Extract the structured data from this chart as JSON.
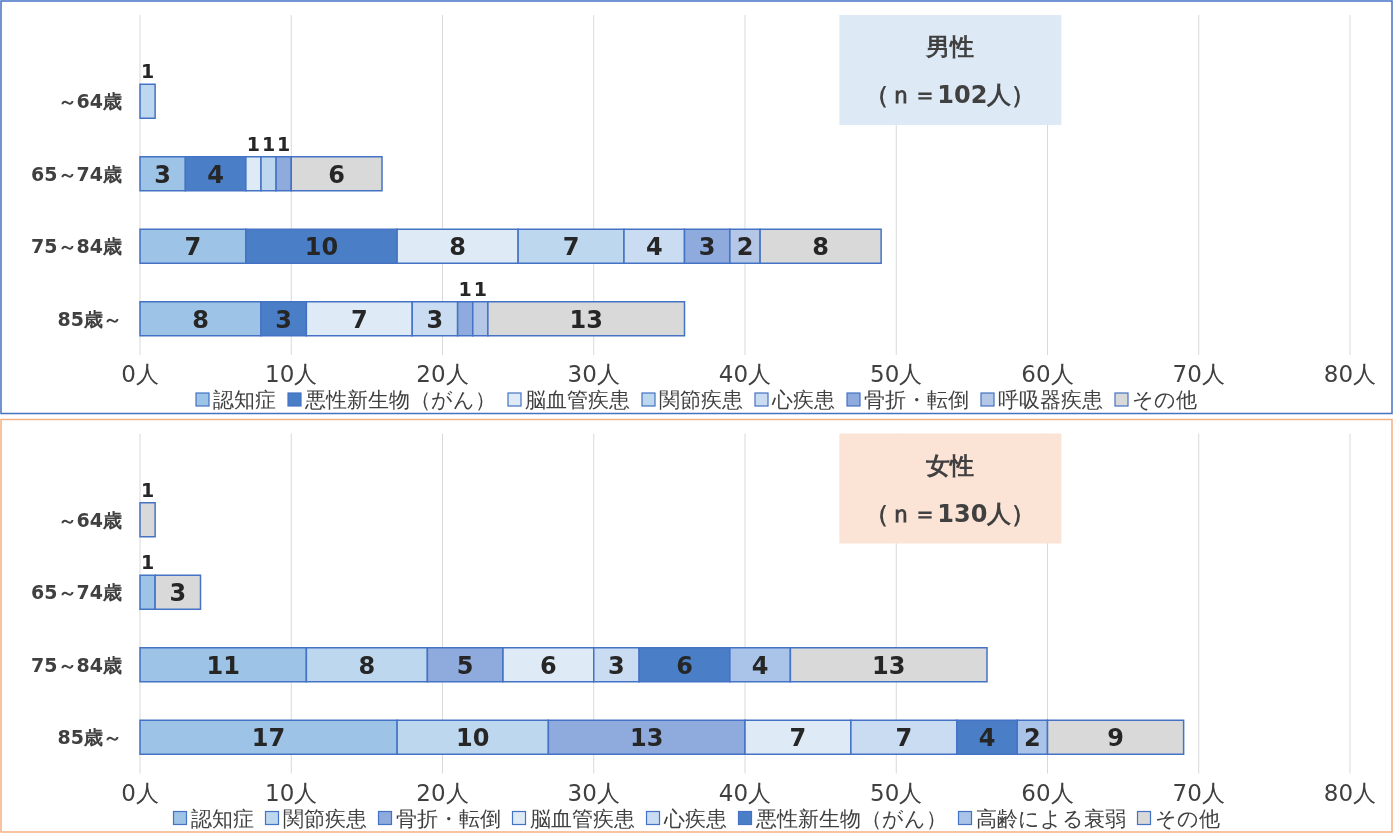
{
  "chart_data": [
    {
      "type": "bar",
      "orientation": "horizontal",
      "stacked": true,
      "title": "男性",
      "subtitle": "（ｎ＝102人）",
      "categories": [
        "～64歳",
        "65～74歳",
        "75～84歳",
        "85歳～"
      ],
      "series": [
        {
          "name": "認知症",
          "color": "#9dc3e6",
          "values": [
            null,
            3,
            7,
            8
          ]
        },
        {
          "name": "悪性新生物（がん）",
          "color": "#4a7fc8",
          "values": [
            null,
            4,
            10,
            3
          ]
        },
        {
          "name": "脳血管疾患",
          "color": "#deebf7",
          "values": [
            null,
            1,
            8,
            7
          ]
        },
        {
          "name": "関節疾患",
          "color": "#bdd7ee",
          "values": [
            1,
            1,
            7,
            null
          ]
        },
        {
          "name": "心疾患",
          "color": "#c9dcf2",
          "values": [
            null,
            null,
            4,
            3
          ]
        },
        {
          "name": "骨折・転倒",
          "color": "#8faadc",
          "values": [
            null,
            1,
            3,
            1
          ]
        },
        {
          "name": "呼吸器疾患",
          "color": "#b4c7e7",
          "values": [
            null,
            null,
            2,
            1
          ]
        },
        {
          "name": "その他",
          "color": "#d9d9d9",
          "values": [
            null,
            6,
            8,
            13
          ]
        }
      ],
      "xlim": [
        0,
        80
      ],
      "xticks": [
        {
          "value": 0,
          "label": "0人"
        },
        {
          "value": 10,
          "label": "10人"
        },
        {
          "value": 20,
          "label": "20人"
        },
        {
          "value": 30,
          "label": "30人"
        },
        {
          "value": 40,
          "label": "40人"
        },
        {
          "value": 50,
          "label": "50人"
        },
        {
          "value": 60,
          "label": "60人"
        },
        {
          "value": 70,
          "label": "70人"
        },
        {
          "value": 80,
          "label": "80人"
        }
      ],
      "grid": "x",
      "legend": "bottom",
      "data_labels": true
    },
    {
      "type": "bar",
      "orientation": "horizontal",
      "stacked": true,
      "title": "女性",
      "subtitle": "（ｎ＝130人）",
      "categories": [
        "～64歳",
        "65～74歳",
        "75～84歳",
        "85歳～"
      ],
      "series": [
        {
          "name": "認知症",
          "color": "#9dc3e6",
          "values": [
            null,
            1,
            11,
            17
          ]
        },
        {
          "name": "関節疾患",
          "color": "#bdd7ee",
          "values": [
            null,
            null,
            8,
            10
          ]
        },
        {
          "name": "骨折・転倒",
          "color": "#8faadc",
          "values": [
            null,
            null,
            5,
            13
          ]
        },
        {
          "name": "脳血管疾患",
          "color": "#deebf7",
          "values": [
            null,
            null,
            6,
            7
          ]
        },
        {
          "name": "心疾患",
          "color": "#c9dcf2",
          "values": [
            null,
            null,
            3,
            7
          ]
        },
        {
          "name": "悪性新生物（がん）",
          "color": "#4a7fc8",
          "values": [
            null,
            null,
            6,
            4
          ]
        },
        {
          "name": "高齢による衰弱",
          "color": "#a9c4e8",
          "values": [
            null,
            null,
            4,
            2
          ]
        },
        {
          "name": "その他",
          "color": "#d9d9d9",
          "values": [
            1,
            3,
            13,
            9
          ]
        }
      ],
      "xlim": [
        0,
        80
      ],
      "xticks": [
        {
          "value": 0,
          "label": "0人"
        },
        {
          "value": 10,
          "label": "10人"
        },
        {
          "value": 20,
          "label": "20人"
        },
        {
          "value": 30,
          "label": "30人"
        },
        {
          "value": 40,
          "label": "40人"
        },
        {
          "value": 50,
          "label": "50人"
        },
        {
          "value": 60,
          "label": "60人"
        },
        {
          "value": 70,
          "label": "70人"
        },
        {
          "value": 80,
          "label": "80人"
        }
      ],
      "grid": "x",
      "legend": "bottom",
      "data_labels": true
    }
  ]
}
